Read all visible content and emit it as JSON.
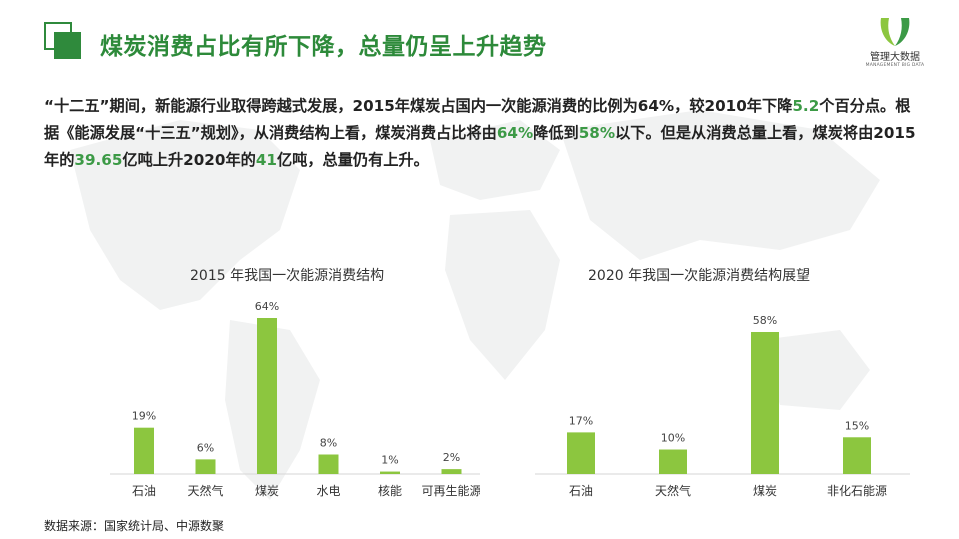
{
  "header": {
    "title": "煤炭消费占比有所下降，总量仍呈上升趋势"
  },
  "logo": {
    "name_cn": "管理大数据",
    "name_en": "MANAGEMENT BIG DATA",
    "icon": "leaf-logo-icon"
  },
  "paragraph": {
    "s1": "“十二五”期间，新能源行业取得跨越式发展，2015年煤炭占国内一次能源消费的比例为64%，较2010年下降",
    "h1": "5.2",
    "s2": "个百分点。根据《能源发展“十三五”规划》，从消费结构上看，煤炭消费占比将由",
    "h2": "64%",
    "s3": "降低到",
    "h3": "58%",
    "s4": "以下。但是从消费总量上看，煤炭将由2015年的",
    "h4": "39.65",
    "s5": "亿吨上升2020年的",
    "h5": "41",
    "s6": "亿吨，总量仍有上升。"
  },
  "colors": {
    "accent": "#2d8a3a",
    "bar": "#8cc63f",
    "highlight": "#3c9a46"
  },
  "chart_data": [
    {
      "type": "bar",
      "title": "2015 年我国一次能源消费结构",
      "categories": [
        "石油",
        "天然气",
        "煤炭",
        "水电",
        "核能",
        "可再生能源"
      ],
      "values": [
        19,
        6,
        64,
        8,
        1,
        2
      ],
      "value_labels": [
        "19%",
        "6%",
        "64%",
        "8%",
        "1%",
        "2%"
      ],
      "ylim": [
        0,
        64
      ],
      "grid": false,
      "legend": "none"
    },
    {
      "type": "bar",
      "title": "2020 年我国一次能源消费结构展望",
      "categories": [
        "石油",
        "天然气",
        "煤炭",
        "非化石能源"
      ],
      "values": [
        17,
        10,
        58,
        15
      ],
      "value_labels": [
        "17%",
        "10%",
        "58%",
        "15%"
      ],
      "ylim": [
        0,
        58
      ],
      "grid": false,
      "legend": "none"
    }
  ],
  "footer": {
    "source": "数据来源：国家统计局、中源数聚"
  }
}
